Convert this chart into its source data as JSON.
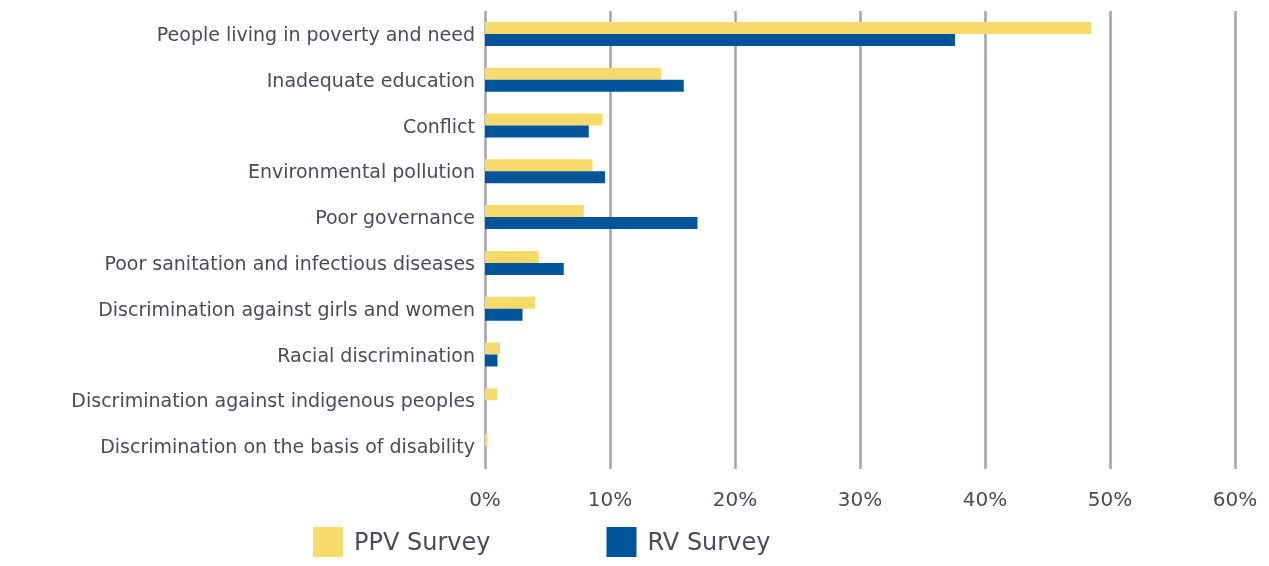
{
  "chart_data": {
    "type": "bar",
    "orientation": "horizontal",
    "categories": [
      "People living in poverty and need",
      "Inadequate education",
      "Conflict",
      "Environmental pollution",
      "Poor governance",
      "Poor sanitation and infectious diseases",
      "Discrimination against girls and women",
      "Racial discrimination",
      "Discrimination against indigenous peoples",
      "Discrimination on the basis of disability"
    ],
    "series": [
      {
        "name": "PPV Survey",
        "color": "#f6da6b",
        "values": [
          48.5,
          14.1,
          9.4,
          8.6,
          7.9,
          4.3,
          4.0,
          1.2,
          1.0,
          0.2
        ]
      },
      {
        "name": "RV Survey",
        "color": "#00559a",
        "values": [
          37.6,
          15.9,
          8.3,
          9.6,
          17.0,
          6.3,
          3.0,
          1.0,
          0,
          0
        ]
      }
    ],
    "xlim": [
      0,
      60
    ],
    "xticks": [
      {
        "value": 0,
        "label": "0%"
      },
      {
        "value": 10,
        "label": "10%"
      },
      {
        "value": 20,
        "label": "20%"
      },
      {
        "value": 30,
        "label": "30%"
      },
      {
        "value": 40,
        "label": "40%"
      },
      {
        "value": 50,
        "label": "50%"
      },
      {
        "value": 60,
        "label": "60%"
      }
    ],
    "grid": "x",
    "legend": "bottom"
  }
}
